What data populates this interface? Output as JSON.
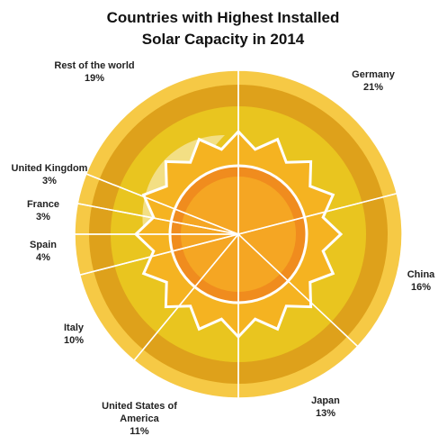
{
  "chart_data": {
    "type": "pie",
    "title": "Countries with Highest Installed Solar Capacity in 2014",
    "categories": [
      "Germany",
      "China",
      "Japan",
      "United States of America",
      "Italy",
      "Spain",
      "France",
      "United Kingdom",
      "Rest of the world"
    ],
    "values": [
      21,
      16,
      13,
      11,
      10,
      4,
      3,
      3,
      19
    ],
    "value_labels": [
      "21%",
      "16%",
      "13%",
      "11%",
      "10%",
      "4%",
      "3%",
      "3%",
      "19%"
    ]
  }
}
